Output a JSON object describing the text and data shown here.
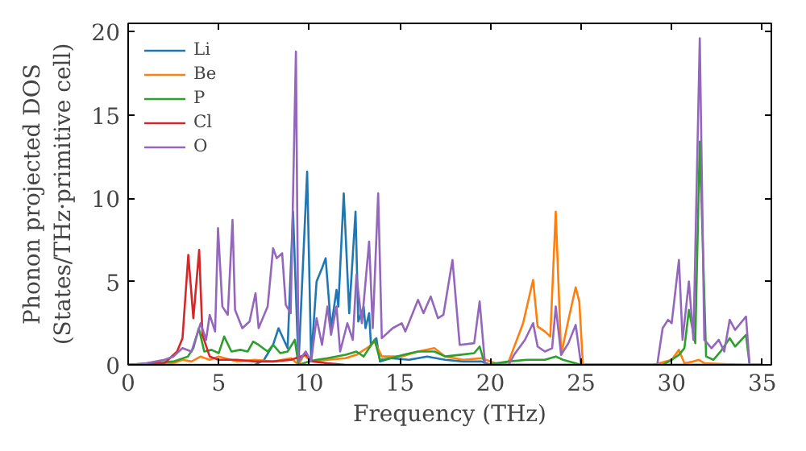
{
  "chart_data": {
    "type": "line",
    "xlabel": "Frequency (THz)",
    "ylabel": "Phonon projected DOS\n(States/THz·primitive cell)",
    "xlim": [
      0,
      35.5
    ],
    "ylim": [
      0,
      20.5
    ],
    "xticks": [
      0,
      5,
      10,
      15,
      20,
      25,
      30,
      35
    ],
    "yticks": [
      0,
      5,
      10,
      15,
      20
    ],
    "grid": false,
    "legend": "top left",
    "line_style": "solid",
    "series": [
      {
        "name": "Li",
        "color": "#1f77b4",
        "x": [
          0,
          7.0,
          7.5,
          8.0,
          8.3,
          8.8,
          9.1,
          9.4,
          9.88,
          10.1,
          10.4,
          10.7,
          10.9,
          11.2,
          11.5,
          11.6,
          11.9,
          12.2,
          12.55,
          12.7,
          13.0,
          13.1,
          13.3,
          13.4,
          13.7,
          13.9,
          14.5,
          15.5,
          16.5,
          17.5,
          18.5,
          19.5,
          20,
          35
        ],
        "values": [
          0,
          0,
          0.3,
          1.2,
          2.2,
          1.0,
          9.2,
          0,
          11.6,
          0.3,
          5.0,
          5.8,
          6.4,
          2.2,
          4.5,
          3.5,
          10.3,
          3.1,
          9.2,
          2.6,
          3.5,
          2.2,
          3.1,
          1.2,
          1.6,
          0.2,
          0.4,
          0.3,
          0.5,
          0.3,
          0.2,
          0.2,
          0,
          0
        ]
      },
      {
        "name": "Be",
        "color": "#ff7f0e",
        "x": [
          0,
          2.5,
          3.0,
          3.5,
          4.0,
          4.5,
          5.0,
          6.0,
          7.0,
          8.0,
          9.0,
          9.4,
          9.7,
          10.1,
          11.0,
          12.0,
          12.6,
          13.3,
          13.6,
          14.0,
          15.1,
          16.0,
          16.9,
          17.5,
          18.5,
          19.5,
          20.5,
          21.0,
          21.8,
          22.35,
          22.6,
          23.0,
          23.3,
          23.6,
          23.9,
          24.3,
          24.7,
          24.9,
          25.1,
          29,
          30.0,
          30.4,
          30.7,
          31.2,
          31.5,
          31.8,
          34,
          35
        ],
        "values": [
          0,
          0.1,
          0.3,
          0.2,
          0.5,
          0.3,
          0.5,
          0.2,
          0.3,
          0.2,
          0.4,
          0,
          0.6,
          0.2,
          0.3,
          0.4,
          0.6,
          1.1,
          1.4,
          0.5,
          0.5,
          0.8,
          1.0,
          0.5,
          0.3,
          0.4,
          0,
          0.2,
          2.5,
          5.1,
          2.3,
          2.0,
          1.7,
          9.2,
          0.6,
          2.7,
          4.65,
          3.8,
          0,
          0,
          0.3,
          0.9,
          0.1,
          0.2,
          0.3,
          0.1,
          0,
          0
        ]
      },
      {
        "name": "P",
        "color": "#2ca02c",
        "x": [
          0,
          2.5,
          3.3,
          3.6,
          3.9,
          4.2,
          4.6,
          5.0,
          5.3,
          5.7,
          6.2,
          6.6,
          6.9,
          7.2,
          7.7,
          8.0,
          8.4,
          8.8,
          9.2,
          9.4,
          10.0,
          10.4,
          11.0,
          12.0,
          12.6,
          13.0,
          13.6,
          13.9,
          14.5,
          15.2,
          16.0,
          16.9,
          17.5,
          18.3,
          19.1,
          19.4,
          19.7,
          21.0,
          22.0,
          23.0,
          23.6,
          24.0,
          25.0,
          29.5,
          30.0,
          30.4,
          30.7,
          30.95,
          31.3,
          31.55,
          31.9,
          32.3,
          32.7,
          33.2,
          33.5,
          34.1,
          34.3,
          35
        ],
        "values": [
          0,
          0.2,
          0.5,
          1.0,
          2.2,
          0.8,
          0.9,
          0.7,
          1.7,
          0.8,
          0.9,
          0.8,
          1.4,
          1.2,
          0.8,
          1.2,
          0.7,
          0.8,
          1.5,
          0,
          0.2,
          0.3,
          0.4,
          0.6,
          0.8,
          0.5,
          1.5,
          0.3,
          0.4,
          0.6,
          0.8,
          0.8,
          0.5,
          0.6,
          0.7,
          1.1,
          0,
          0.2,
          0.3,
          0.3,
          0.5,
          0.3,
          0,
          0,
          0.3,
          0.6,
          1.0,
          3.3,
          1.3,
          13.4,
          0.5,
          0.3,
          0.8,
          1.6,
          1.1,
          1.8,
          0,
          0
        ]
      },
      {
        "name": "Cl",
        "color": "#d62728",
        "x": [
          0,
          2.0,
          2.7,
          3.0,
          3.32,
          3.6,
          3.92,
          4.1,
          4.5,
          5.0,
          6.0,
          7.0,
          8.0,
          9.0,
          9.5,
          9.8,
          10.2,
          11.0,
          12.0,
          35
        ],
        "values": [
          0,
          0.1,
          0.8,
          1.6,
          6.6,
          2.8,
          6.9,
          1.8,
          0.5,
          0.3,
          0.3,
          0.2,
          0.2,
          0.3,
          0.5,
          0.6,
          0.2,
          0.1,
          0,
          0
        ]
      },
      {
        "name": "O",
        "color": "#9467bd",
        "x": [
          0,
          1.0,
          2.0,
          2.5,
          3.0,
          3.5,
          4.0,
          4.3,
          4.5,
          4.8,
          4.96,
          5.2,
          5.5,
          5.76,
          5.9,
          6.3,
          6.7,
          7.03,
          7.2,
          7.7,
          8.0,
          8.2,
          8.5,
          8.7,
          8.97,
          9.26,
          9.4,
          9.8,
          10.1,
          10.4,
          10.7,
          11.0,
          11.2,
          11.5,
          11.7,
          12.1,
          12.4,
          12.6,
          12.9,
          13.3,
          13.5,
          13.8,
          14.0,
          14.6,
          15.1,
          15.3,
          16.0,
          16.3,
          16.7,
          17.1,
          17.4,
          17.9,
          18.3,
          19.1,
          19.4,
          19.7,
          21.0,
          21.3,
          21.9,
          22.35,
          22.6,
          23.0,
          23.4,
          23.6,
          23.9,
          24.3,
          24.7,
          25.0,
          29.2,
          29.5,
          29.8,
          30.0,
          30.4,
          30.6,
          30.95,
          31.2,
          31.55,
          31.8,
          32.2,
          32.6,
          32.9,
          33.2,
          33.5,
          34.1,
          34.3,
          35
        ],
        "values": [
          0,
          0.1,
          0.3,
          0.5,
          1.0,
          0.8,
          2.5,
          1.5,
          3.0,
          2.0,
          8.2,
          3.5,
          3.0,
          8.7,
          3.3,
          2.2,
          2.6,
          4.3,
          2.2,
          3.5,
          7.0,
          6.4,
          6.7,
          3.6,
          3.1,
          18.8,
          0.2,
          0.8,
          0.2,
          2.8,
          1.2,
          3.5,
          1.8,
          3.5,
          0.8,
          2.5,
          1.5,
          5.4,
          2.5,
          7.4,
          2.2,
          10.3,
          1.6,
          2.2,
          2.5,
          2.0,
          3.9,
          3.1,
          4.1,
          2.8,
          3.0,
          6.3,
          1.2,
          1.3,
          3.8,
          0,
          0,
          0.6,
          1.5,
          2.5,
          1.1,
          0.8,
          1.0,
          3.5,
          0.6,
          1.3,
          2.4,
          0,
          0,
          2.2,
          2.7,
          2.5,
          6.3,
          1.5,
          5.0,
          1.5,
          19.6,
          1.5,
          1.0,
          1.5,
          0.8,
          2.7,
          2.1,
          2.9,
          0,
          0
        ]
      }
    ]
  }
}
